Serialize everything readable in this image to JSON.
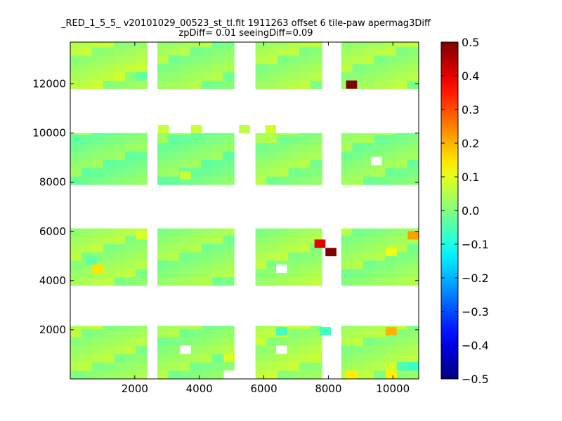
{
  "chart_data": {
    "type": "heatmap",
    "title_line1": "_RED_1_5_5_ v20101029_00523_st_tl.fit 1911263 offset 6 tile-paw apermag3Diff",
    "title_line2": "zpDiff= 0.01 seeingDiff=0.09",
    "xlabel": "",
    "ylabel": "",
    "xlim": [
      0,
      10800
    ],
    "ylim": [
      0,
      13700
    ],
    "xticks": [
      2000,
      4000,
      6000,
      8000,
      10000
    ],
    "yticks": [
      2000,
      4000,
      6000,
      8000,
      10000,
      12000
    ],
    "colorbar": {
      "min": -0.5,
      "max": 0.5,
      "ticks": [
        -0.5,
        -0.4,
        -0.3,
        -0.2,
        -0.1,
        0.0,
        0.1,
        0.2,
        0.3,
        0.4,
        0.5
      ],
      "tick_labels": [
        "−0.5",
        "−0.4",
        "−0.3",
        "−0.2",
        "−0.1",
        "0.0",
        "0.1",
        "0.2",
        "0.3",
        "0.4",
        "0.5"
      ],
      "colormap": "jet"
    },
    "cell_size": 340,
    "blocks": [
      {
        "x0": 0,
        "x1": 2380,
        "y0": 0,
        "y1": 2160,
        "value": 0.03
      },
      {
        "x0": 2700,
        "x1": 5080,
        "y0": 0,
        "y1": 2160,
        "value": 0.02
      },
      {
        "x0": 5740,
        "x1": 7800,
        "y0": 0,
        "y1": 2160,
        "value": 0.04
      },
      {
        "x0": 8400,
        "x1": 10800,
        "y0": 0,
        "y1": 2160,
        "value": 0.03
      },
      {
        "x0": 0,
        "x1": 2380,
        "y0": 3800,
        "y1": 6120,
        "value": 0.03
      },
      {
        "x0": 2700,
        "x1": 5080,
        "y0": 3800,
        "y1": 6120,
        "value": 0.02
      },
      {
        "x0": 5740,
        "x1": 7800,
        "y0": 3800,
        "y1": 6120,
        "value": 0.03
      },
      {
        "x0": 8400,
        "x1": 10800,
        "y0": 3800,
        "y1": 6120,
        "value": 0.02
      },
      {
        "x0": 0,
        "x1": 2380,
        "y0": 7900,
        "y1": 10000,
        "value": 0.0
      },
      {
        "x0": 2700,
        "x1": 5080,
        "y0": 7900,
        "y1": 10000,
        "value": 0.0
      },
      {
        "x0": 5740,
        "x1": 7800,
        "y0": 7900,
        "y1": 10000,
        "value": 0.02
      },
      {
        "x0": 8400,
        "x1": 10800,
        "y0": 7900,
        "y1": 10000,
        "value": 0.01
      },
      {
        "x0": 0,
        "x1": 2380,
        "y0": 11800,
        "y1": 13700,
        "value": 0.04
      },
      {
        "x0": 2700,
        "x1": 5080,
        "y0": 11800,
        "y1": 13700,
        "value": 0.02
      },
      {
        "x0": 5740,
        "x1": 7800,
        "y0": 11800,
        "y1": 13700,
        "value": 0.03
      },
      {
        "x0": 8400,
        "x1": 10800,
        "y0": 11800,
        "y1": 13700,
        "value": 0.03
      }
    ],
    "cells": [
      {
        "x": 8720,
        "y": 11970,
        "value": 0.5
      },
      {
        "x": 7740,
        "y": 5500,
        "value": 0.4
      },
      {
        "x": 8080,
        "y": 5160,
        "value": 0.5
      },
      {
        "x": 850,
        "y": 4480,
        "value": 0.15
      },
      {
        "x": 2210,
        "y": 5840,
        "value": 0.09
      },
      {
        "x": 10630,
        "y": 5840,
        "value": 0.22
      },
      {
        "x": 9950,
        "y": 5160,
        "value": 0.11
      },
      {
        "x": 9950,
        "y": 1940,
        "value": 0.2
      },
      {
        "x": 6550,
        "y": 1940,
        "value": -0.06
      },
      {
        "x": 7910,
        "y": 1940,
        "value": -0.06
      },
      {
        "x": 8720,
        "y": 170,
        "value": 0.14
      },
      {
        "x": 9950,
        "y": 170,
        "value": 0.14
      },
      {
        "x": 10290,
        "y": 510,
        "value": -0.05
      },
      {
        "x": 10630,
        "y": 510,
        "value": -0.07
      },
      {
        "x": 9950,
        "y": 510,
        "value": 0.08
      },
      {
        "x": 1530,
        "y": 12310,
        "value": 0.08
      },
      {
        "x": 2210,
        "y": 12650,
        "value": 0.07
      },
      {
        "x": 2210,
        "y": 12310,
        "value": -0.03
      },
      {
        "x": 3570,
        "y": 8290,
        "value": 0.07
      },
      {
        "x": 2890,
        "y": 10160,
        "value": 0.07
      },
      {
        "x": 3910,
        "y": 10160,
        "value": 0.07
      },
      {
        "x": 5400,
        "y": 10160,
        "value": 0.06
      },
      {
        "x": 6210,
        "y": 10160,
        "value": 0.08
      },
      {
        "x": 4930,
        "y": 850,
        "value": 0.09
      },
      {
        "x": 650,
        "y": 4820,
        "value": -0.03
      }
    ],
    "holes": [
      {
        "x": 9490,
        "y": 8860
      },
      {
        "x": 6550,
        "y": 4480
      },
      {
        "x": 3570,
        "y": 1190
      },
      {
        "x": 6550,
        "y": 1190
      },
      {
        "x": 4930,
        "y": 170
      }
    ]
  }
}
